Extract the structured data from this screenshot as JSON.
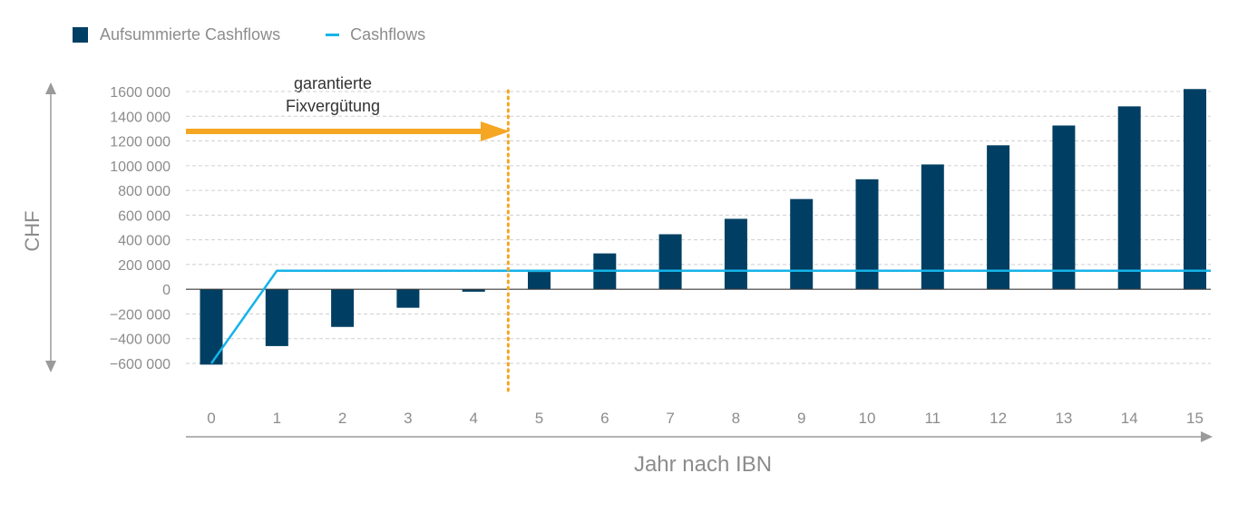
{
  "legend": {
    "bars_label": "Aufsummierte Cashflows",
    "line_label": "Cashflows"
  },
  "annotation": {
    "line1": "garantierte",
    "line2": "Fixvergütung"
  },
  "colors": {
    "bars": "#003f63",
    "line": "#15b3e8",
    "arrow": "#f5a623",
    "divider": "#f5a623",
    "axis_text": "#8c8c8c",
    "grid": "#cfcfcf"
  },
  "chart_data": {
    "type": "bar",
    "xlabel": "Jahr nach IBN",
    "ylabel": "CHF",
    "ylim": [
      -600000,
      1600000
    ],
    "grid": true,
    "legend_position": "top-left",
    "categories": [
      "0",
      "1",
      "2",
      "3",
      "4",
      "5",
      "6",
      "7",
      "8",
      "9",
      "10",
      "11",
      "12",
      "13",
      "14",
      "15"
    ],
    "y_ticks": [
      1600000,
      1400000,
      1200000,
      1000000,
      800000,
      600000,
      400000,
      200000,
      0,
      -200000,
      -400000,
      -600000
    ],
    "y_tick_labels": [
      "1600 000",
      "1400 000",
      "1200 000",
      "1000 000",
      "800 000",
      "600 000",
      "400 000",
      "200 000",
      "0",
      "−200 000",
      "−400 000",
      "−600 000"
    ],
    "series": [
      {
        "name": "Aufsummierte Cashflows",
        "kind": "bar",
        "values": [
          -610000,
          -460000,
          -305000,
          -150000,
          -20000,
          140000,
          290000,
          445000,
          570000,
          730000,
          890000,
          1010000,
          1165000,
          1325000,
          1480000,
          1620000
        ]
      },
      {
        "name": "Cashflows",
        "kind": "line",
        "values": [
          -600000,
          150000,
          150000,
          150000,
          150000,
          150000,
          150000,
          150000,
          150000,
          150000,
          150000,
          150000,
          150000,
          150000,
          150000,
          150000
        ]
      }
    ],
    "annotation_divider_between": [
      "4",
      "5"
    ]
  }
}
